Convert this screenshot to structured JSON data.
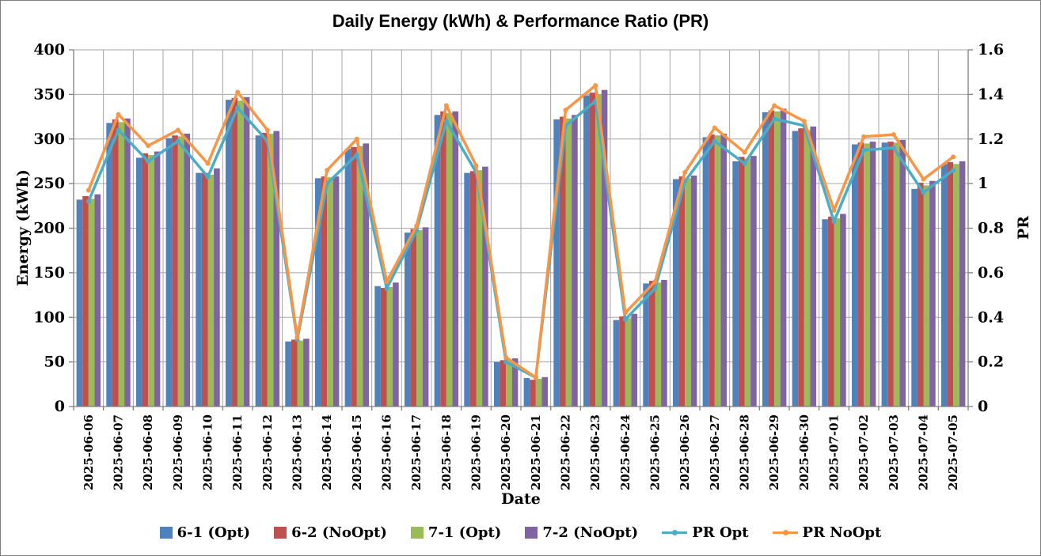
{
  "chart_data": {
    "type": "bar+line",
    "title": "Daily Energy (kWh) & Performance Ratio (PR)",
    "xlabel": "Date",
    "ylabel_left": "Energy (kWh)",
    "ylabel_right": "PR",
    "ylim_left": [
      0,
      400
    ],
    "ytick_step_left": 50,
    "ylim_right": [
      0,
      1.6
    ],
    "ytick_step_right": 0.2,
    "grid": true,
    "legend_position": "bottom",
    "grid_color": "#a6a6a6",
    "axis_color": "#808080",
    "categories": [
      "2025-06-06",
      "2025-06-07",
      "2025-06-08",
      "2025-06-09",
      "2025-06-10",
      "2025-06-11",
      "2025-06-12",
      "2025-06-13",
      "2025-06-14",
      "2025-06-15",
      "2025-06-16",
      "2025-06-17",
      "2025-06-18",
      "2025-06-19",
      "2025-06-20",
      "2025-06-21",
      "2025-06-22",
      "2025-06-23",
      "2025-06-24",
      "2025-06-25",
      "2025-06-26",
      "2025-06-27",
      "2025-06-28",
      "2025-06-29",
      "2025-06-30",
      "2025-07-01",
      "2025-07-02",
      "2025-07-03",
      "2025-07-04",
      "2025-07-05"
    ],
    "bar_series": [
      {
        "name": "6-1 (Opt)",
        "color": "#4F81BD",
        "values": [
          232,
          318,
          279,
          301,
          262,
          344,
          304,
          73,
          256,
          289,
          135,
          195,
          327,
          262,
          50,
          32,
          322,
          349,
          97,
          138,
          255,
          302,
          275,
          330,
          309,
          210,
          294,
          296,
          244,
          272
        ]
      },
      {
        "name": "6-2 (NoOpt)",
        "color": "#C0504D",
        "values": [
          236,
          322,
          284,
          304,
          262,
          346,
          307,
          75,
          258,
          291,
          133,
          199,
          331,
          264,
          52,
          30,
          325,
          352,
          101,
          141,
          258,
          305,
          280,
          332,
          312,
          213,
          296,
          297,
          251,
          274
        ]
      },
      {
        "name": "7-1 (Opt)",
        "color": "#9BBB59",
        "values": [
          233,
          319,
          282,
          303,
          260,
          343,
          306,
          74,
          257,
          292,
          134,
          198,
          329,
          265,
          52,
          31,
          323,
          350,
          99,
          139,
          256,
          304,
          278,
          331,
          310,
          211,
          295,
          296,
          248,
          272
        ]
      },
      {
        "name": "7-2 (NoOpt)",
        "color": "#8064A2",
        "values": [
          238,
          323,
          286,
          306,
          267,
          347,
          309,
          76,
          258,
          295,
          139,
          201,
          331,
          269,
          54,
          33,
          327,
          355,
          104,
          142,
          259,
          306,
          281,
          334,
          314,
          216,
          297,
          299,
          253,
          275
        ]
      }
    ],
    "line_series": [
      {
        "name": "PR Opt",
        "color": "#4BACC6",
        "axis": "right",
        "values": [
          0.92,
          1.24,
          1.1,
          1.19,
          1.03,
          1.34,
          1.19,
          0.3,
          1.0,
          1.13,
          0.53,
          0.79,
          1.28,
          1.05,
          0.2,
          0.13,
          1.26,
          1.37,
          0.39,
          0.53,
          1.01,
          1.19,
          1.09,
          1.29,
          1.26,
          0.83,
          1.15,
          1.16,
          0.96,
          1.06
        ]
      },
      {
        "name": "PR NoOpt",
        "color": "#F79646",
        "axis": "right",
        "values": [
          0.97,
          1.31,
          1.17,
          1.24,
          1.09,
          1.41,
          1.24,
          0.31,
          1.06,
          1.2,
          0.56,
          0.81,
          1.35,
          1.08,
          0.22,
          0.13,
          1.33,
          1.44,
          0.42,
          0.56,
          1.05,
          1.25,
          1.14,
          1.35,
          1.28,
          0.88,
          1.21,
          1.22,
          1.02,
          1.12
        ]
      }
    ]
  }
}
